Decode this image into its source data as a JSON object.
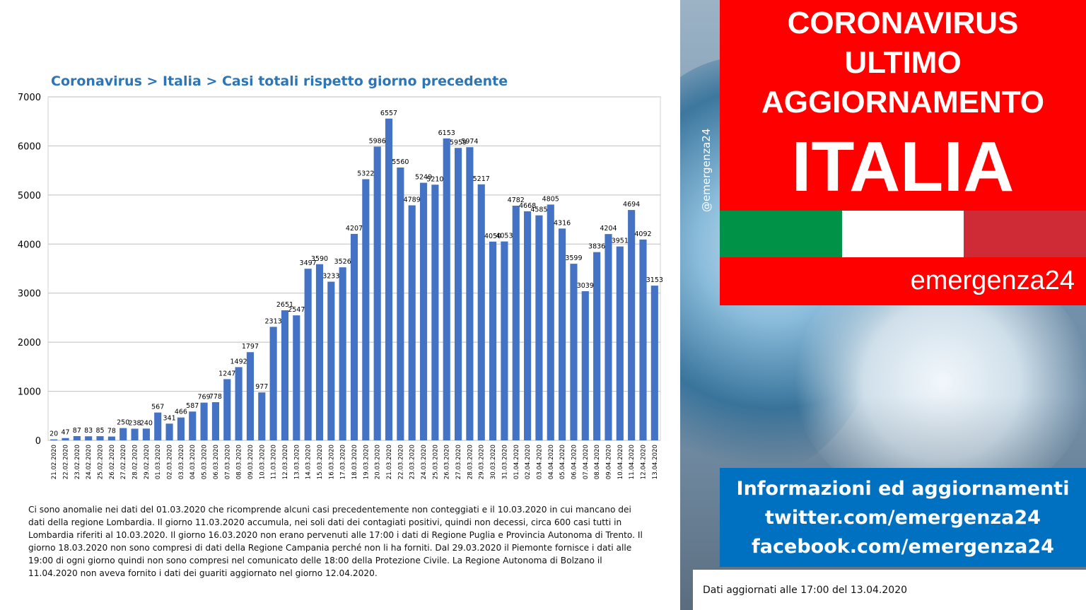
{
  "chart_data": {
    "type": "bar",
    "title": "Coronavirus > Italia > Casi totali rispetto giorno precedente",
    "xlabel": "",
    "ylabel": "",
    "ylim": [
      0,
      7000
    ],
    "yticks": [
      "0",
      "1000",
      "2000",
      "3000",
      "4000",
      "5000",
      "6000",
      "7000"
    ],
    "grid": true,
    "bar_color": "#4472c4",
    "categories": [
      "21.02.2020",
      "22.02.2020",
      "23.02.2020",
      "24.02.2020",
      "25.02.2020",
      "26.02.2020",
      "27.02.2020",
      "28.02.2020",
      "29.02.2020",
      "01.03.2020",
      "02.03.2020",
      "03.03.2020",
      "04.03.2020",
      "05.03.2020",
      "06.03.2020",
      "07.03.2020",
      "08.03.2020",
      "09.03.2020",
      "10.03.2020",
      "11.03.2020",
      "12.03.2020",
      "13.03.2020",
      "14.03.2020",
      "15.03.2020",
      "16.03.2020",
      "17.03.2020",
      "18.03.2020",
      "19.03.2020",
      "20.03.2020",
      "21.03.2020",
      "22.03.2020",
      "23.03.2020",
      "24.03.2020",
      "25.03.2020",
      "26.03.2020",
      "27.03.2020",
      "28.03.2020",
      "29.03.2020",
      "30.03.2020",
      "31.03.2020",
      "01.04.2020",
      "02.04.2020",
      "03.04.2020",
      "04.04.2020",
      "05.04.2020",
      "06.04.2020",
      "07.04.2020",
      "08.04.2020",
      "09.04.2020",
      "10.04.2020",
      "11.04.2020",
      "12.04.2020",
      "13.04.2020"
    ],
    "values": [
      20,
      47,
      87,
      83,
      85,
      78,
      250,
      238,
      240,
      567,
      341,
      466,
      587,
      769,
      778,
      1247,
      1492,
      1797,
      977,
      2313,
      2651,
      2547,
      3497,
      3590,
      3233,
      3526,
      4207,
      5322,
      5986,
      6557,
      5560,
      4789,
      5249,
      5210,
      6153,
      5959,
      5974,
      5217,
      4050,
      4053,
      4782,
      4668,
      4585,
      4805,
      4316,
      3599,
      3039,
      3836,
      4204,
      3951,
      4694,
      4092,
      3153
    ]
  },
  "notes": "Ci sono anomalie nei dati del 01.03.2020 che ricomprende alcuni casi precedentemente non conteggiati e il 10.03.2020 in cui mancano dei dati della regione Lombardia. Il giorno 11.03.2020 accumula, nei soli dati dei contagiati positivi, quindi non decessi, circa 600 casi tutti in Lombardia riferiti al 10.03.2020. Il giorno 16.03.2020 non erano pervenuti alle 17:00 i dati di Regione Puglia e Provincia Autonoma di Trento. Il giorno 18.03.2020 non sono compresi di dati della Regione Campania perché non li ha forniti. Dal 29.03.2020 il Piemonte fornisce i dati alle 19:00 di ogni giorno quindi non sono compresi nel comunicato delle 18:00 della Protezione Civile. La Regione Autonoma di Bolzano il 11.04.2020 non aveva fornito i dati dei guariti aggiornato nel giorno 12.04.2020.",
  "side": {
    "handle": "@emergenza24",
    "headline": [
      "CORONAVIRUS",
      "ULTIMO",
      "AGGIORNAMENTO",
      "ITALIA"
    ],
    "brand": "emergenza24",
    "info": [
      "Informazioni ed aggiornamenti",
      "twitter.com/emergenza24",
      "facebook.com/emergenza24"
    ],
    "updated": "Dati aggiornati alle 17:00 del 13.04.2020",
    "colors": {
      "red": "#ff0000",
      "blue": "#0070c0",
      "flag_green": "#009246",
      "flag_white": "#ffffff",
      "flag_red": "#ce2b37"
    }
  }
}
